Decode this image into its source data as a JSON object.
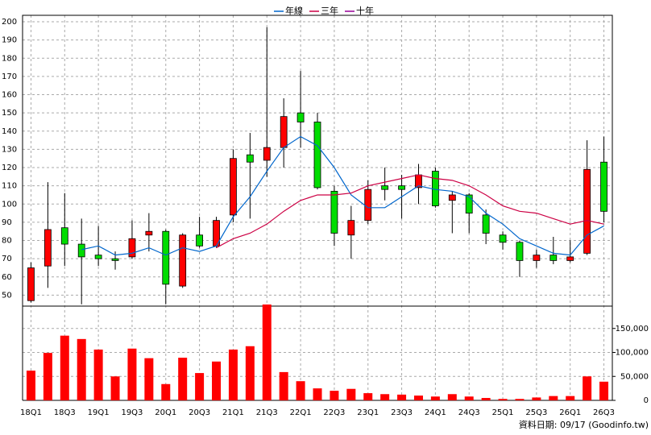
{
  "chart_data": [
    {
      "type": "candlestick",
      "legend": "top",
      "grid": true,
      "up_color": "#ff0000",
      "down_color": "#00dd00",
      "categories": [
        "18Q1",
        null,
        "18Q3",
        null,
        "19Q1",
        null,
        "19Q3",
        null,
        "20Q1",
        null,
        "20Q3",
        null,
        "21Q1",
        null,
        "21Q3",
        null,
        "22Q1",
        null,
        "22Q3",
        null,
        "23Q1",
        null,
        "23Q3",
        null,
        "24Q1",
        null,
        "24Q3",
        null,
        "25Q1",
        null,
        "25Q3",
        null,
        "26Q1",
        null,
        "26Q3"
      ],
      "open": [
        47,
        66,
        87,
        78,
        72,
        70,
        71,
        83,
        85,
        55,
        83,
        77,
        94,
        127,
        124,
        131,
        150,
        145,
        107,
        83,
        91,
        110,
        110,
        109,
        118,
        102,
        105,
        94,
        83,
        79,
        69,
        72,
        69,
        73,
        123
      ],
      "high": [
        68,
        112,
        106,
        92,
        88,
        74,
        91,
        95,
        86,
        84,
        93,
        93,
        130,
        139,
        197,
        158,
        173,
        150,
        110,
        99,
        113,
        120,
        116,
        122,
        120,
        107,
        106,
        97,
        85,
        80,
        75,
        82,
        80,
        135,
        137
      ],
      "low": [
        46,
        54,
        66,
        45,
        66,
        64,
        70,
        74,
        45,
        54,
        76,
        76,
        90,
        92,
        115,
        120,
        131,
        108,
        77,
        70,
        89,
        102,
        92,
        100,
        98,
        84,
        84,
        78,
        75,
        60,
        65,
        67,
        68,
        72,
        90
      ],
      "close": [
        65,
        86,
        78,
        71,
        70,
        69,
        81,
        85,
        56,
        83,
        77,
        91,
        125,
        123,
        131,
        148,
        145,
        109,
        84,
        91,
        108,
        108,
        108,
        116,
        99,
        105,
        95,
        84,
        79,
        69,
        72,
        69,
        71,
        119,
        96
      ],
      "series": [
        {
          "name": "年線",
          "color": "#0066cc",
          "values": [
            null,
            null,
            null,
            75,
            77,
            72,
            73,
            76,
            72,
            76,
            74,
            77,
            93,
            104,
            118,
            131,
            137,
            132,
            120,
            105,
            98,
            98,
            104,
            110,
            108,
            107,
            104,
            95,
            89,
            81,
            77,
            73,
            72,
            83,
            88
          ]
        },
        {
          "name": "三年",
          "color": "#cc0044",
          "values": [
            null,
            null,
            null,
            null,
            null,
            null,
            null,
            null,
            null,
            null,
            null,
            76,
            81,
            84,
            89,
            96,
            102,
            105,
            105,
            106,
            110,
            112,
            114,
            116,
            114,
            113,
            110,
            105,
            99,
            96,
            95,
            92,
            89,
            91,
            89
          ]
        },
        {
          "name": "十年",
          "color": "#990099",
          "values": [
            null,
            null,
            null,
            null,
            null,
            null,
            null,
            null,
            null,
            null,
            null,
            null,
            null,
            null,
            null,
            null,
            null,
            null,
            null,
            null,
            null,
            null,
            null,
            null,
            null,
            null,
            null,
            null,
            null,
            null,
            null,
            null,
            null,
            null,
            null
          ]
        }
      ],
      "ylim": [
        44,
        200
      ],
      "yticks": [
        50,
        60,
        70,
        80,
        90,
        100,
        110,
        120,
        130,
        140,
        150,
        160,
        170,
        180,
        190,
        200
      ]
    },
    {
      "type": "bar",
      "grid": true,
      "color": "#ff0000",
      "values": [
        62000,
        99000,
        135000,
        128000,
        106000,
        50000,
        108000,
        88000,
        34000,
        89000,
        57000,
        81000,
        106000,
        113000,
        200000,
        59000,
        40000,
        25000,
        20000,
        24000,
        15000,
        13000,
        12000,
        10000,
        8000,
        13000,
        8000,
        5000,
        3000,
        3000,
        6000,
        9000,
        9000,
        50000,
        39000
      ],
      "ylim": [
        0,
        200000
      ],
      "yticks": [
        0,
        {
          "value": 50000,
          "label": "50,000"
        },
        {
          "value": 100000,
          "label": "100,000"
        },
        {
          "value": 150000,
          "label": "150,000"
        }
      ]
    }
  ],
  "footer": "資料日期: 09/17 (Goodinfo.tw)"
}
